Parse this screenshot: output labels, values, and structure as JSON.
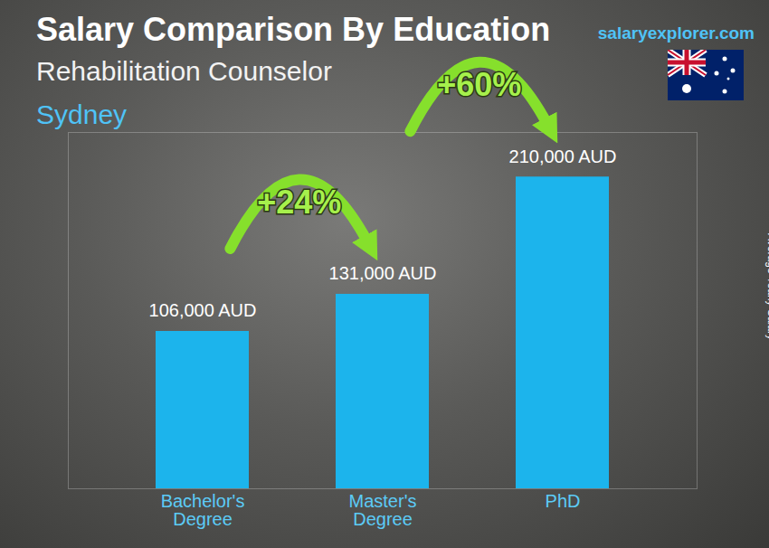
{
  "chart_data": {
    "type": "bar",
    "title": "Salary Comparison By Education",
    "subtitle": "Rehabilitation Counselor",
    "location": "Sydney",
    "source": "salaryexplorer.com",
    "y_label": "Average Yearly Salary",
    "categories": [
      "Bachelor's Degree",
      "Master's Degree",
      "PhD"
    ],
    "values": [
      106000,
      131000,
      210000
    ],
    "value_labels": [
      "106,000 AUD",
      "131,000 AUD",
      "210,000 AUD"
    ],
    "data_labels": true,
    "color": "#1cb4ec",
    "ylim": [
      0,
      240000
    ],
    "tick_labels": "x",
    "annotations": [
      {
        "text": "+24%",
        "from": "Bachelor's Degree",
        "to": "Master's Degree"
      },
      {
        "text": "+60%",
        "from": "Master's Degree",
        "to": "PhD"
      }
    ]
  }
}
